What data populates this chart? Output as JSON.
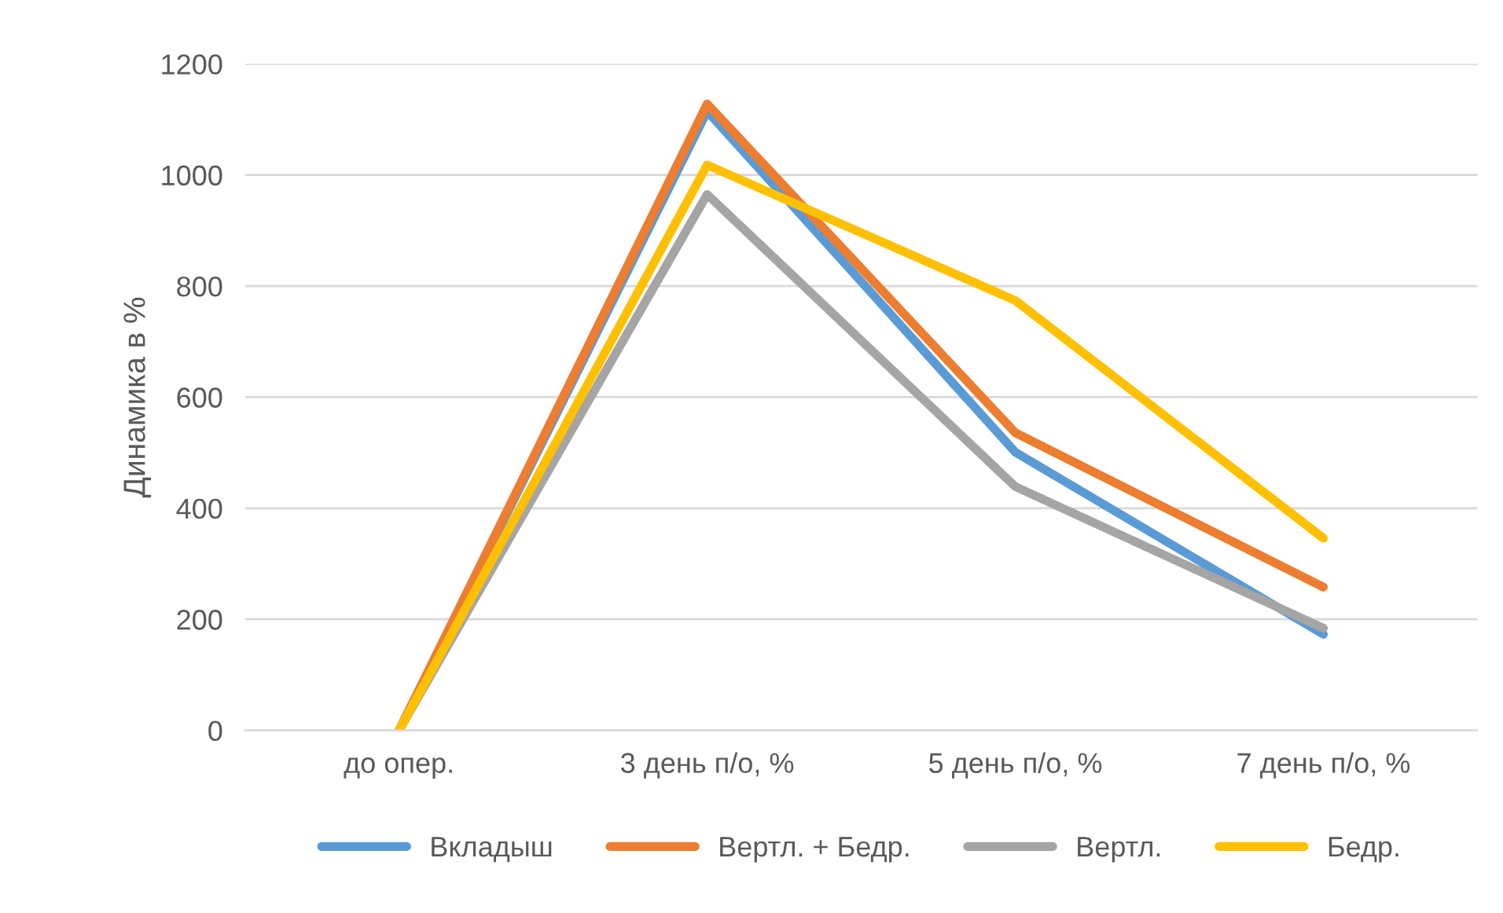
{
  "chart_data": {
    "type": "line",
    "ylabel": "Динамика в %",
    "categories": [
      "до опер.",
      "3 день п/о, %",
      "5 день п/о, %",
      "7 день п/о, %"
    ],
    "series": [
      {
        "name": "Вкладыш",
        "color": "#5b9bd5",
        "values": [
          0,
          1115,
          501,
          173
        ]
      },
      {
        "name": "Вертл. + Бедр.",
        "color": "#ed7d31",
        "values": [
          0,
          1128,
          536,
          258
        ]
      },
      {
        "name": "Вертл.",
        "color": "#a5a5a5",
        "values": [
          0,
          965,
          439,
          184
        ]
      },
      {
        "name": "Бедр.",
        "color": "#ffc000",
        "values": [
          0,
          1018,
          774,
          346
        ]
      }
    ],
    "ylim": [
      0,
      1200
    ],
    "yticks": [
      0,
      200,
      400,
      600,
      800,
      1000,
      1200
    ],
    "grid": "y",
    "legend": "bottom",
    "marker": "none",
    "line_style": "solid"
  }
}
